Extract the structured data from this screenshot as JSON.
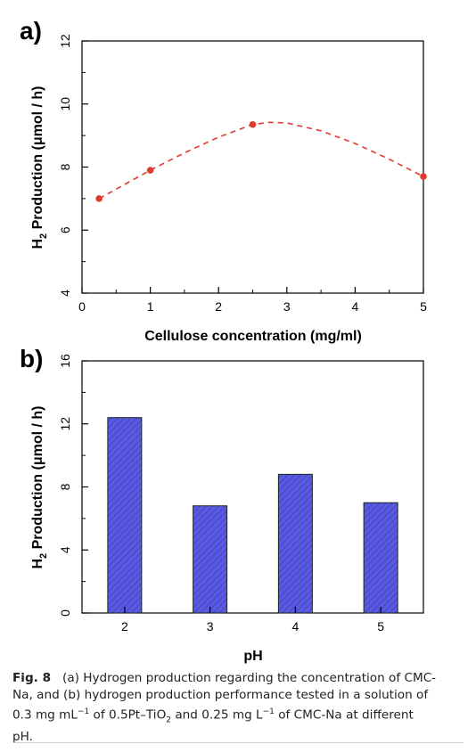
{
  "chart_data": [
    {
      "panel_label": "a)",
      "type": "scatter",
      "marker_color": "#e03a2f",
      "fit_line": {
        "style": "dashed",
        "color": "#e03a2f"
      },
      "x": [
        0.25,
        1,
        2.5,
        5
      ],
      "y": [
        7.0,
        7.9,
        9.35,
        7.7
      ],
      "curve_x": [
        0.25,
        0.5,
        1.0,
        1.5,
        2.0,
        2.5,
        2.75,
        3.0,
        3.5,
        4.0,
        4.5,
        5.0
      ],
      "curve_y": [
        7.0,
        7.3,
        7.9,
        8.45,
        8.95,
        9.35,
        9.42,
        9.4,
        9.15,
        8.75,
        8.25,
        7.7
      ],
      "xlabel": "Cellulose concentration (mg/ml)",
      "ylabel": "H2 Production (μmol / h)",
      "ylabel_parts": {
        "h": "H",
        "sub": "2",
        "rest": " Production (μmol / h)"
      },
      "xlim": [
        0,
        5
      ],
      "ylim": [
        4,
        12
      ],
      "xticks": [
        "0",
        "1",
        "2",
        "3",
        "4",
        "5"
      ],
      "yticks": [
        "4",
        "6",
        "8",
        "10",
        "12"
      ]
    },
    {
      "panel_label": "b)",
      "type": "bar",
      "bar_color": "#5a5ae0",
      "bar_pattern": "diagonal-hatch",
      "categories": [
        "2",
        "3",
        "4",
        "5"
      ],
      "values": [
        12.4,
        6.8,
        8.8,
        7.0
      ],
      "xlabel": "pH",
      "ylabel": "H2 Production (μmol / h)",
      "ylabel_parts": {
        "h": "H",
        "sub": "2",
        "rest": " Production (μmol / h)"
      },
      "ylim": [
        0,
        16
      ],
      "yticks": [
        "0",
        "4",
        "8",
        "12",
        "16"
      ]
    }
  ],
  "caption": {
    "label": "Fig. 8",
    "line1": "(a) Hydrogen production regarding the concentration of CMC-",
    "line2": "Na, and (b) hydrogen production performance tested in a solution of",
    "line3_pre": "0.3 mg mL",
    "line3_sup1": "−1",
    "line3_mid": " of 0.5Pt–TiO",
    "line3_sub": "2",
    "line3_mid2": " and 0.25 mg L",
    "line3_sup2": "−1",
    "line3_post": " of CMC-Na at different",
    "line4": "pH."
  }
}
